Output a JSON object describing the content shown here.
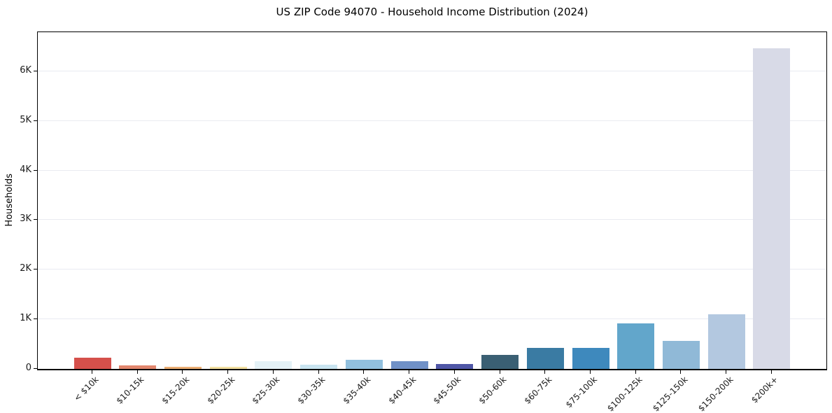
{
  "figure": {
    "background": "#ffffff",
    "spine_color": "#000000",
    "gridline_color": "#e9ebf1",
    "text_color": "#1a1a1a"
  },
  "chart_data": {
    "type": "bar",
    "title": "US ZIP Code 94070 - Household Income Distribution (2024)",
    "xlabel": "",
    "ylabel": "Households",
    "categories": [
      "< $10k",
      "$10-15k",
      "$15-20k",
      "$20-25k",
      "$25-30k",
      "$30-35k",
      "$35-40k",
      "$40-45k",
      "$45-50k",
      "$50-60k",
      "$60-75k",
      "$75-100k",
      "$100-125k",
      "$125-150k",
      "$150-200k",
      "$200k+"
    ],
    "values": [
      230,
      70,
      45,
      40,
      150,
      90,
      190,
      160,
      100,
      285,
      430,
      420,
      920,
      560,
      1100,
      6470
    ],
    "bar_colors": [
      "#d5504b",
      "#e2876e",
      "#ecae74",
      "#f2dfa0",
      "#e4f1f6",
      "#c9e4f0",
      "#92c0de",
      "#7091c7",
      "#4f56a6",
      "#3a5f73",
      "#3a7ba3",
      "#3e89bd",
      "#62a6cb",
      "#90b9d7",
      "#b3c8e0",
      "#d8dae7"
    ],
    "ytick_labels": [
      "0",
      "1K",
      "2K",
      "3K",
      "4K",
      "5K",
      "6K"
    ],
    "ytick_values": [
      0,
      1000,
      2000,
      3000,
      4000,
      5000,
      6000
    ],
    "ylim": [
      0,
      6790
    ],
    "grid": "horizontal",
    "legend": "none",
    "x_label_rotation_deg": 45
  }
}
